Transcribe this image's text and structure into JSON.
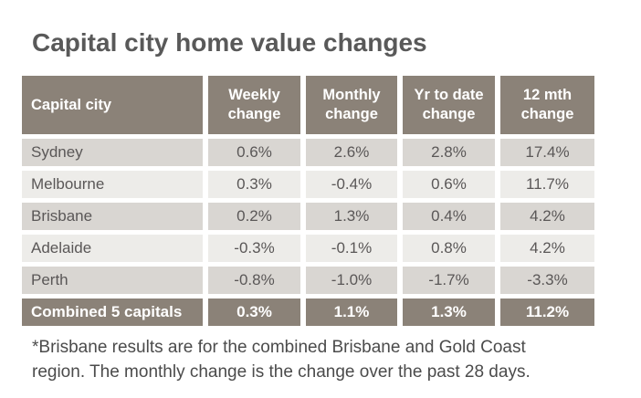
{
  "title": "Capital city home value changes",
  "table": {
    "headers": [
      "Capital city",
      "Weekly change",
      "Monthly change",
      "Yr to date change",
      "12 mth change"
    ],
    "rows": [
      [
        "Sydney",
        "0.6%",
        "2.6%",
        "2.8%",
        "17.4%"
      ],
      [
        "Melbourne",
        "0.3%",
        "-0.4%",
        "0.6%",
        "11.7%"
      ],
      [
        "Brisbane",
        "0.2%",
        "1.3%",
        "0.4%",
        "4.2%"
      ],
      [
        "Adelaide",
        "-0.3%",
        "-0.1%",
        "0.8%",
        "4.2%"
      ],
      [
        "Perth",
        "-0.8%",
        "-1.0%",
        "-1.7%",
        "-3.3%"
      ]
    ],
    "total_row": [
      "Combined 5 capitals",
      "0.3%",
      "1.1%",
      "1.3%",
      "11.2%"
    ]
  },
  "footnote": {
    "line1": "*Brisbane results are for the combined Brisbane and Gold Coast",
    "line2": "region. The monthly change is the change over the past 28 days."
  },
  "colors": {
    "header_bg": "#8b8278",
    "header_text": "#ffffff",
    "row_odd_bg": "#d9d6d2",
    "row_even_bg": "#edece9",
    "body_text": "#5a5757",
    "title_text": "#595959"
  },
  "chart_data": {
    "type": "table",
    "title": "Capital city home value changes",
    "columns": [
      "Capital city",
      "Weekly change",
      "Monthly change",
      "Yr to date change",
      "12 mth change"
    ],
    "units": "%",
    "rows": [
      [
        "Sydney",
        0.6,
        2.6,
        2.8,
        17.4
      ],
      [
        "Melbourne",
        0.3,
        -0.4,
        0.6,
        11.7
      ],
      [
        "Brisbane",
        0.2,
        1.3,
        0.4,
        4.2
      ],
      [
        "Adelaide",
        -0.3,
        -0.1,
        0.8,
        4.2
      ],
      [
        "Perth",
        -0.8,
        -1.0,
        -1.7,
        -3.3
      ],
      [
        "Combined 5 capitals",
        0.3,
        1.1,
        1.3,
        11.2
      ]
    ],
    "footnote": "*Brisbane results are for the combined Brisbane and Gold Coast region. The monthly change is the change over the past 28 days."
  }
}
